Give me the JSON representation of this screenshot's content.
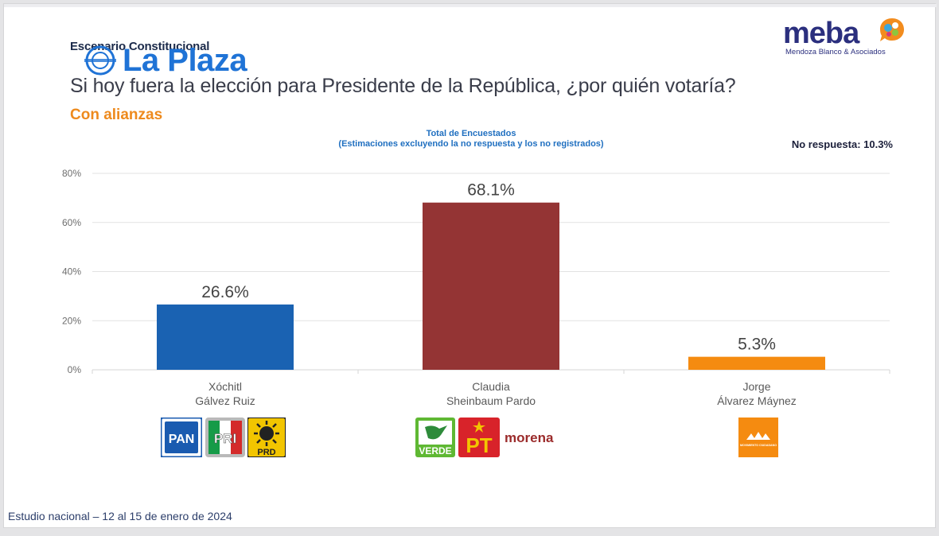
{
  "header": {
    "kicker": "Escenario Constitucional",
    "question": "Si hoy fuera la elección para Presidente de la República, ¿por quién votaría?",
    "subtitle": "Con alianzas",
    "watermark": "La Plaza"
  },
  "logo": {
    "word": "meba",
    "tagline": "Mendoza Blanco & Asociados"
  },
  "chart_data": {
    "type": "bar",
    "title": "Total de Encuestados",
    "subtitle": "(Estimaciones excluyendo la no respuesta y los no registrados)",
    "categories": [
      [
        "Xóchitl",
        "Gálvez Ruiz"
      ],
      [
        "Claudia",
        "Sheinbaum Pardo"
      ],
      [
        "Jorge",
        "Álvarez Máynez"
      ]
    ],
    "values": [
      26.6,
      68.1,
      5.3
    ],
    "data_labels": [
      "26.6%",
      "68.1%",
      "5.3%"
    ],
    "colors": [
      "#1a62b2",
      "#943434",
      "#f58b10"
    ],
    "ylim": [
      0,
      80
    ],
    "yticks": [
      0,
      20,
      40,
      60,
      80
    ],
    "ytick_labels": [
      "0%",
      "20%",
      "40%",
      "60%",
      "80%"
    ],
    "grid": true,
    "annotation": "No respuesta: 10.3%"
  },
  "parties": [
    {
      "name": "PAN",
      "color": "#1a5bb0"
    },
    {
      "name": "PRI",
      "color": "#d42a2a"
    },
    {
      "name": "PRD",
      "color": "#f2c500"
    },
    {
      "name": "VERDE",
      "color": "#5fb833"
    },
    {
      "name": "PT",
      "color": "#d8232a"
    },
    {
      "name": "morena",
      "color": "#9b2b2b"
    },
    {
      "name": "MOVIMIENTO CIUDADANO",
      "color": "#f58b10"
    }
  ],
  "footer": "Estudio nacional – 12 al 15 de enero de 2024"
}
